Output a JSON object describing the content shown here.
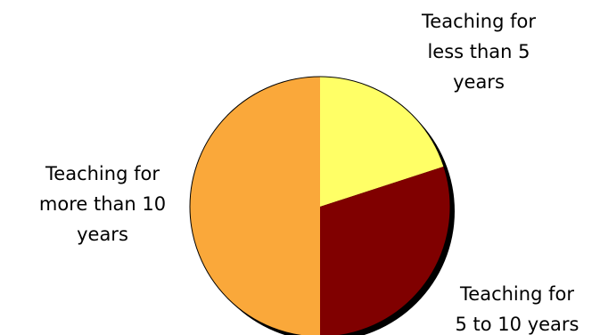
{
  "chart_data": {
    "type": "pie",
    "title": "",
    "start_at": "top",
    "direction": "clockwise",
    "slices": [
      {
        "label": "Teaching for less than 5 years",
        "label_lines": [
          "Teaching for",
          "less than 5",
          "years"
        ],
        "value": 20,
        "color": "#FFFF66"
      },
      {
        "label": "Teaching for 5 to 10 years",
        "label_lines": [
          "Teaching for",
          "5 to 10 years"
        ],
        "value": 30,
        "color": "#800000"
      },
      {
        "label": "Teaching for more than 10 years",
        "label_lines": [
          "Teaching for",
          "more than 10",
          "years"
        ],
        "value": 50,
        "color": "#FAA83A"
      }
    ],
    "outline_color": "#000000",
    "shadow": true
  }
}
